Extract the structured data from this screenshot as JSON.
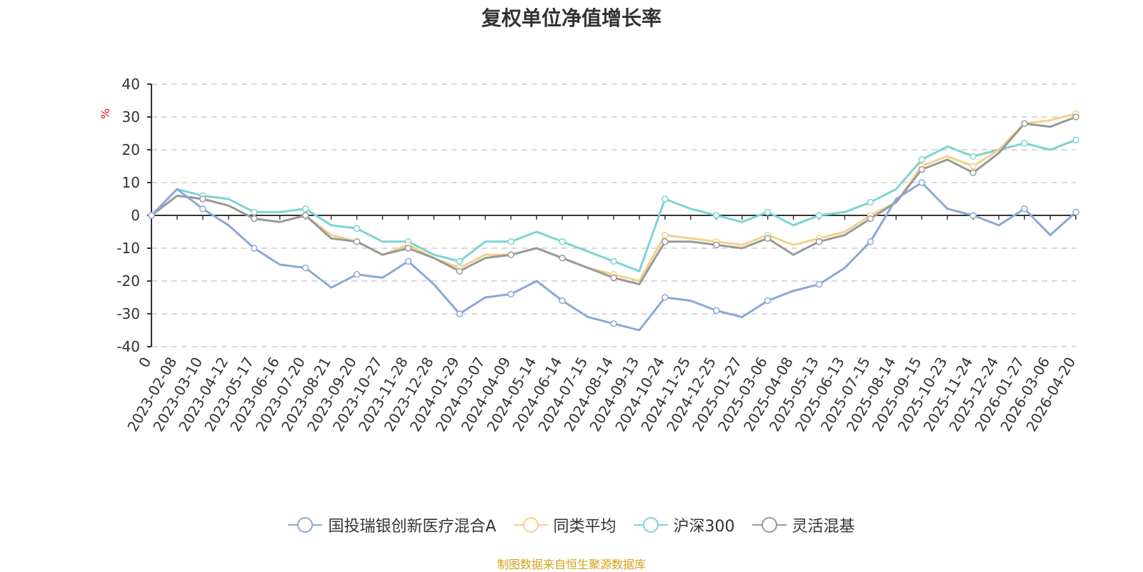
{
  "title": "复权单位净值增长率",
  "unit": "%",
  "source": "制图数据来自恒生聚源数据库",
  "colors": {
    "fund": "#8ba8d8",
    "peer_avg": "#f5d08a",
    "hs300": "#7dd3d3",
    "flexible_mixed": "#999999",
    "axis": "#333333",
    "grid": "#cccccc",
    "unit": "#ee1111",
    "source": "#d4a017"
  },
  "chart_data": {
    "type": "line",
    "title": "复权单位净值增长率",
    "ylabel": "%",
    "ylim": [
      -40,
      40
    ],
    "yticks": [
      40,
      30,
      20,
      10,
      0,
      -10,
      -20,
      -30,
      -40
    ],
    "grid": true,
    "legend_position": "bottom",
    "x": [
      "0",
      "2023-02-08",
      "2023-03-10",
      "2023-04-12",
      "2023-05-17",
      "2023-06-16",
      "2023-07-20",
      "2023-08-21",
      "2023-09-20",
      "2023-10-27",
      "2023-11-28",
      "2023-12-28",
      "2024-01-29",
      "2024-03-07",
      "2024-04-09",
      "2024-05-14",
      "2024-06-14",
      "2024-07-15",
      "2024-08-14",
      "2024-09-13",
      "2024-10-24",
      "2024-11-25",
      "2024-12-25",
      "2025-01-27",
      "2025-03-06",
      "2025-04-08",
      "2025-05-13",
      "2025-06-13",
      "2025-07-15",
      "2025-08-14",
      "2025-09-15",
      "2025-10-23",
      "2025-11-24",
      "2025-12-24",
      "2026-01-27",
      "2026-03-06",
      "2026-04-20"
    ],
    "series": [
      {
        "name": "国投瑞银创新医疗混合A",
        "key": "fund",
        "values": [
          0,
          8,
          2,
          -3,
          -10,
          -15,
          -16,
          -22,
          -18,
          -19,
          -14,
          -21,
          -30,
          -25,
          -24,
          -20,
          -26,
          -31,
          -33,
          -35,
          -25,
          -26,
          -29,
          -31,
          -26,
          -23,
          -21,
          -16,
          -8,
          5,
          10,
          2,
          0,
          -3,
          2,
          -6,
          1
        ]
      },
      {
        "name": "同类平均",
        "key": "peer_avg",
        "values": [
          0,
          6,
          5,
          3,
          -1,
          -2,
          0,
          -6,
          -8,
          -12,
          -9,
          -13,
          -16,
          -12,
          -12,
          -10,
          -13,
          -16,
          -18,
          -20,
          -6,
          -7,
          -8,
          -9,
          -6,
          -9,
          -7,
          -5,
          0,
          4,
          15,
          18,
          15,
          20,
          28,
          29,
          31
        ]
      },
      {
        "name": "沪深300",
        "key": "hs300",
        "values": [
          0,
          8,
          6,
          5,
          1,
          1,
          2,
          -3,
          -4,
          -8,
          -8,
          -12,
          -14,
          -8,
          -8,
          -5,
          -8,
          -11,
          -14,
          -17,
          5,
          2,
          0,
          -2,
          1,
          -3,
          0,
          1,
          4,
          8,
          17,
          21,
          18,
          20,
          22,
          20,
          23
        ]
      },
      {
        "name": "灵活混基",
        "key": "flexible_mixed",
        "values": [
          0,
          6,
          5,
          3,
          -1,
          -2,
          0,
          -7,
          -8,
          -12,
          -10,
          -13,
          -17,
          -13,
          -12,
          -10,
          -13,
          -16,
          -19,
          -21,
          -8,
          -8,
          -9,
          -10,
          -7,
          -12,
          -8,
          -6,
          -1,
          4,
          14,
          17,
          13,
          19,
          28,
          27,
          30
        ]
      }
    ]
  }
}
